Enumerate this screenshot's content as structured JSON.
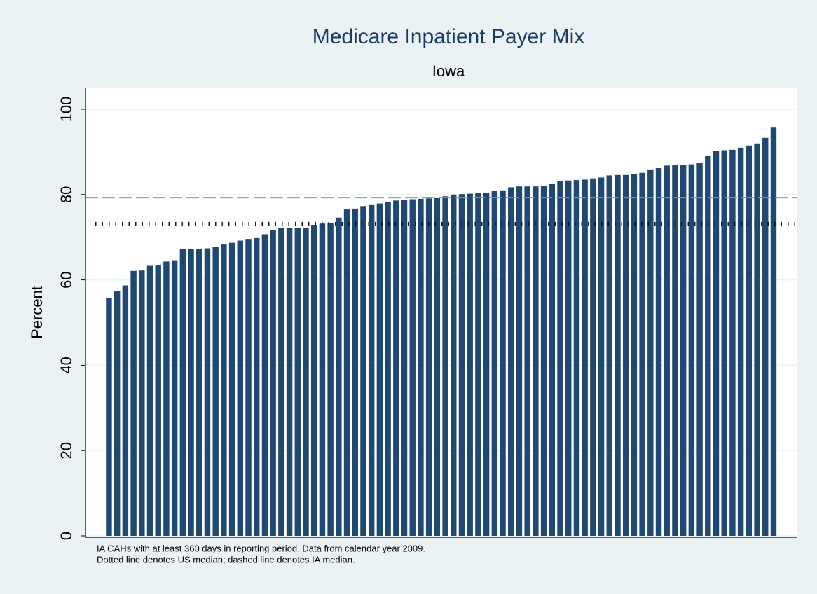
{
  "chart_data": {
    "type": "bar",
    "title": "Medicare Inpatient Payer Mix",
    "subtitle": "Iowa",
    "y_label": "Percent",
    "notes": [
      "IA CAHs with at least 360 days in reporting period. Data from calendar year 2009.",
      "Dotted line denotes US median; dashed line denotes IA median."
    ],
    "color": "#1f4872",
    "values": [
      55.7,
      57.4,
      58.7,
      62.1,
      62.2,
      63.3,
      63.5,
      64.3,
      64.6,
      67.2,
      67.2,
      67.2,
      67.4,
      67.8,
      68.3,
      68.7,
      69.2,
      69.6,
      69.8,
      70.7,
      71.7,
      72.1,
      72.1,
      72.1,
      72.2,
      72.9,
      73.2,
      73.4,
      74.6,
      76.5,
      76.7,
      77.3,
      77.7,
      77.9,
      78.3,
      78.6,
      78.8,
      78.9,
      79.0,
      79.1,
      79.3,
      79.6,
      80.0,
      80.1,
      80.2,
      80.3,
      80.4,
      80.8,
      81.0,
      81.7,
      81.9,
      81.9,
      81.9,
      82.0,
      82.6,
      83.1,
      83.3,
      83.4,
      83.5,
      83.8,
      84.0,
      84.5,
      84.6,
      84.6,
      84.8,
      85.1,
      85.9,
      86.2,
      86.8,
      86.9,
      87.0,
      87.1,
      87.4,
      89.0,
      90.2,
      90.4,
      90.5,
      91.0,
      91.5,
      92.0,
      93.3,
      95.7
    ],
    "reference_lines": [
      {
        "value": 79.3,
        "style": "dashed",
        "color": "#7d93ab"
      },
      {
        "value": 73.1,
        "style": "dotted",
        "color": "#000000"
      }
    ],
    "ylim": [
      0,
      105
    ],
    "yticks": [
      0,
      20,
      40,
      60,
      80,
      100
    ],
    "grid": true
  }
}
